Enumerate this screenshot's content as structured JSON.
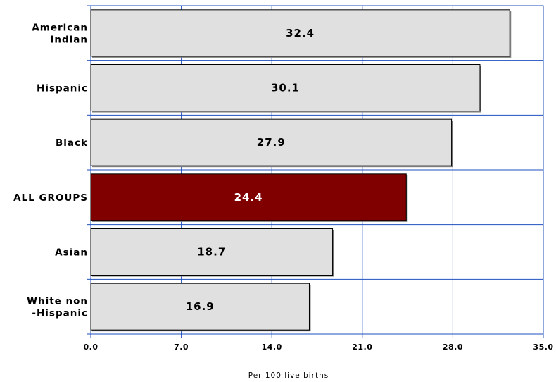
{
  "chart_data": {
    "type": "bar",
    "orientation": "horizontal",
    "categories": [
      "American Indian",
      "Hispanic",
      "Black",
      "ALL GROUPS",
      "Asian",
      "White non -Hispanic"
    ],
    "category_label_lines": [
      [
        "American",
        "Indian"
      ],
      [
        "Hispanic"
      ],
      [
        "Black"
      ],
      [
        "ALL GROUPS"
      ],
      [
        "Asian"
      ],
      [
        "White non",
        "-Hispanic"
      ]
    ],
    "values": [
      32.4,
      30.1,
      27.9,
      24.4,
      18.7,
      16.9
    ],
    "data_labels": [
      "32.4",
      "30.1",
      "27.9",
      "24.4",
      "18.7",
      "16.9"
    ],
    "highlight_index": 3,
    "xlim": [
      0,
      35
    ],
    "xticks": [
      0,
      7,
      14,
      21,
      28,
      35
    ],
    "xtick_labels": [
      "0.0",
      "7.0",
      "14.0",
      "21.0",
      "28.0",
      "35.0"
    ],
    "xlabel": "Per 100 live births",
    "ylabel": "",
    "title": "",
    "grid": true,
    "colors": {
      "bar": "#e0e0e0",
      "bar_highlight": "#800000",
      "bar_border": "#000000",
      "grid": "#1f4fbf",
      "label": "#000000",
      "label_on_highlight": "#ffffff"
    }
  }
}
